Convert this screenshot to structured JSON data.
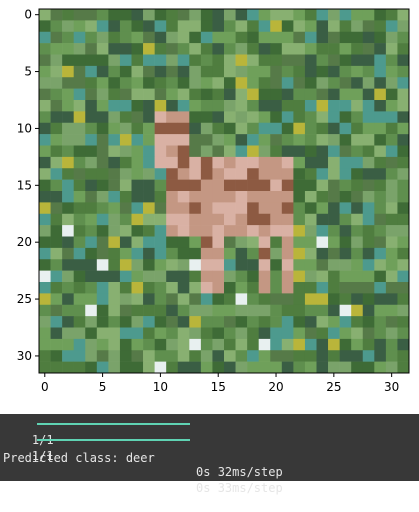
{
  "plot": {
    "x_ticks": [
      "0",
      "5",
      "10",
      "15",
      "20",
      "25",
      "30"
    ],
    "y_ticks": [
      "0",
      "5",
      "10",
      "15",
      "20",
      "25",
      "30"
    ],
    "image_grid_size": 32,
    "palette": {
      "grass_dark": "#3e6b36",
      "grass_mid": "#5f8f4e",
      "grass_light": "#88b071",
      "teal": "#4d9a8e",
      "yellow": "#b9b53a",
      "deer_body": "#c49783",
      "deer_dark": "#8d5a42",
      "deer_light": "#d9b1a4",
      "white_spot": "#e8f0f0"
    }
  },
  "console": {
    "lines": [
      {
        "step": "1/1",
        "bar_progress": 1.0,
        "time": "0s",
        "rate": "32ms/step"
      },
      {
        "step": "1/1",
        "bar_progress": 1.0,
        "time": "0s",
        "rate": "33ms/step"
      }
    ],
    "prediction": "Predicted class: deer"
  }
}
